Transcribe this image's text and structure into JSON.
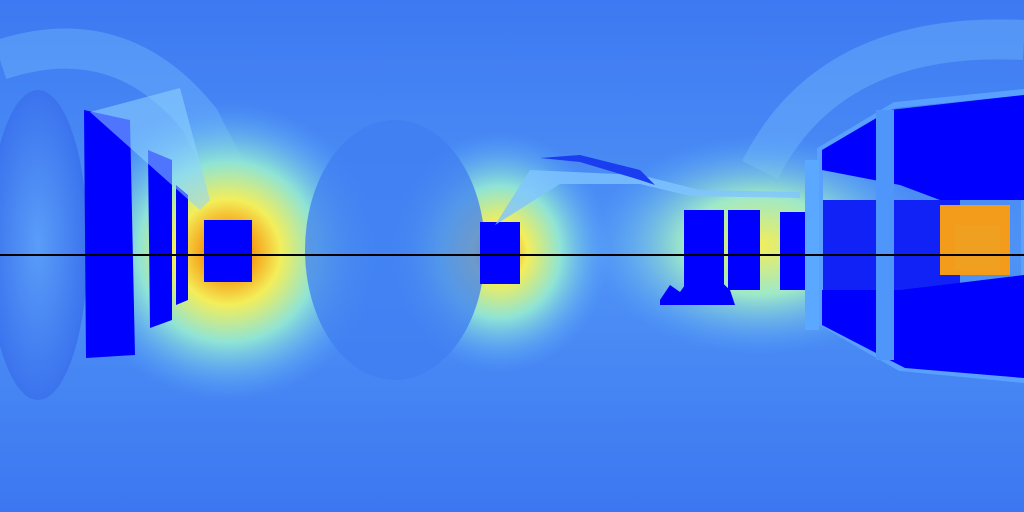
{
  "image": {
    "kind": "equirectangular-depth-map",
    "colormap": "jet",
    "horizon_line": {
      "visible": true,
      "color": "#000000"
    }
  },
  "palette": {
    "background": "#3f7cf2",
    "near": "#0000ff",
    "far_mid": "#5aa8ff",
    "cyan": "#7fe0ff",
    "yellow": "#f4f25a",
    "orange": "#f39c1c",
    "red": "#e24a1e"
  }
}
